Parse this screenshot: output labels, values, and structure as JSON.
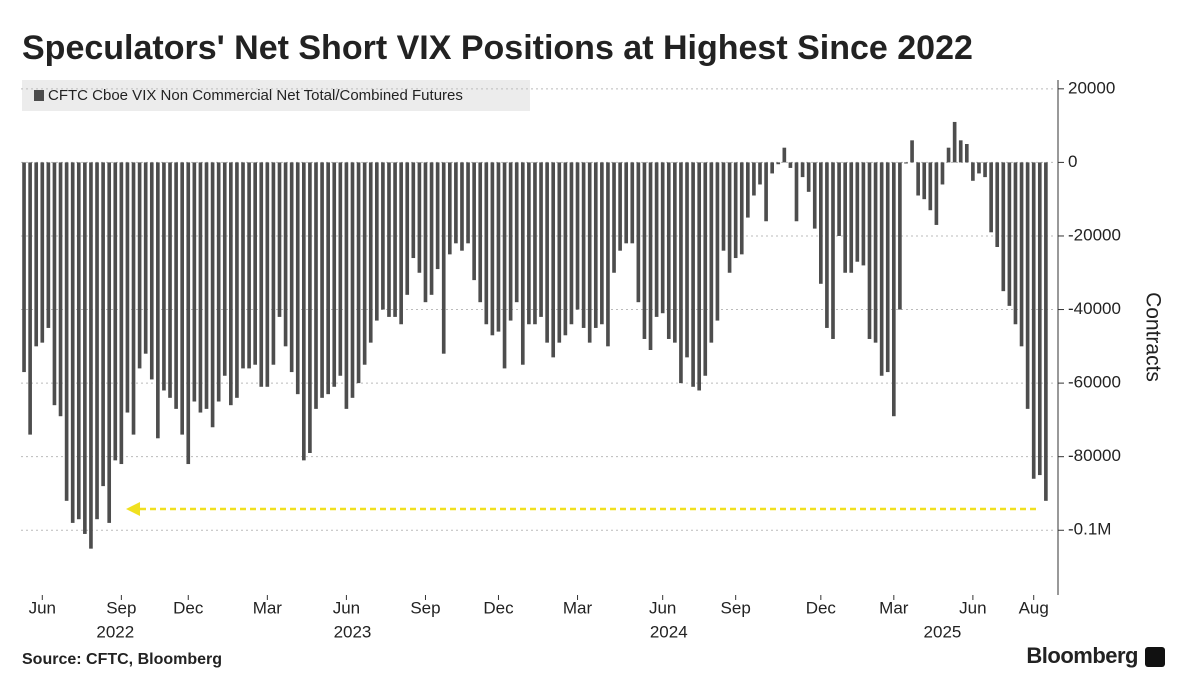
{
  "chart_data": {
    "type": "bar",
    "title": "Speculators' Net Short VIX Positions at Highest Since 2022",
    "y_label": "Contracts",
    "source": "Source: CFTC, Bloomberg",
    "brand": "Bloomberg",
    "series": [
      {
        "name": "CFTC Cboe VIX Non Commercial Net Total/Combined Futures",
        "color": "#4d4d4d",
        "values": [
          -57000,
          -74000,
          -50000,
          -49000,
          -45000,
          -66000,
          -69000,
          -92000,
          -98000,
          -97000,
          -101000,
          -105000,
          -97000,
          -88000,
          -98000,
          -81000,
          -82000,
          -68000,
          -74000,
          -56000,
          -52000,
          -59000,
          -75000,
          -62000,
          -64000,
          -67000,
          -74000,
          -82000,
          -65000,
          -68000,
          -67000,
          -72000,
          -65000,
          -58000,
          -66000,
          -64000,
          -56000,
          -56000,
          -55000,
          -61000,
          -61000,
          -55000,
          -42000,
          -50000,
          -57000,
          -63000,
          -81000,
          -79000,
          -67000,
          -64000,
          -63000,
          -61000,
          -58000,
          -67000,
          -64000,
          -60000,
          -55000,
          -49000,
          -43000,
          -40000,
          -42000,
          -42000,
          -44000,
          -36000,
          -26000,
          -30000,
          -38000,
          -36000,
          -29000,
          -52000,
          -25000,
          -22000,
          -24000,
          -22000,
          -32000,
          -38000,
          -44000,
          -47000,
          -46000,
          -56000,
          -43000,
          -38000,
          -55000,
          -44000,
          -44000,
          -42000,
          -49000,
          -53000,
          -49000,
          -47000,
          -44000,
          -40000,
          -45000,
          -49000,
          -45000,
          -44000,
          -50000,
          -30000,
          -24000,
          -22000,
          -22000,
          -38000,
          -48000,
          -51000,
          -42000,
          -41000,
          -48000,
          -49000,
          -60000,
          -53000,
          -61000,
          -62000,
          -58000,
          -49000,
          -43000,
          -24000,
          -30000,
          -26000,
          -25000,
          -15000,
          -9000,
          -6000,
          -16000,
          -3000,
          -500,
          4000,
          -1500,
          -16000,
          -4000,
          -8000,
          -18000,
          -33000,
          -45000,
          -48000,
          -20000,
          -30000,
          -30000,
          -27000,
          -28000,
          -48000,
          -49000,
          -58000,
          -57000,
          -69000,
          -40000,
          -300,
          6000,
          -9000,
          -10000,
          -13000,
          -17000,
          -6000,
          4000,
          11000,
          6000,
          5000,
          -5000,
          -3000,
          -4000,
          -19000,
          -23000,
          -35000,
          -39000,
          -44000,
          -50000,
          -67000,
          -86000,
          -85000,
          -92000
        ]
      }
    ],
    "xlim": [
      -0.5,
      169.5
    ],
    "xticks": [
      {
        "value": 3,
        "label": "Jun"
      },
      {
        "value": 16,
        "label": "Sep"
      },
      {
        "value": 27,
        "label": "Dec"
      },
      {
        "value": 40,
        "label": "Mar"
      },
      {
        "value": 53,
        "label": "Jun"
      },
      {
        "value": 66,
        "label": "Sep"
      },
      {
        "value": 78,
        "label": "Dec"
      },
      {
        "value": 91,
        "label": "Mar"
      },
      {
        "value": 105,
        "label": "Jun"
      },
      {
        "value": 117,
        "label": "Sep"
      },
      {
        "value": 131,
        "label": "Dec"
      },
      {
        "value": 143,
        "label": "Mar"
      },
      {
        "value": 156,
        "label": "Jun"
      },
      {
        "value": 166,
        "label": "Aug"
      }
    ],
    "year_labels": [
      {
        "value": 15,
        "label": "2022"
      },
      {
        "value": 54,
        "label": "2023"
      },
      {
        "value": 106,
        "label": "2024"
      },
      {
        "value": 151,
        "label": "2025"
      }
    ],
    "ylim": [
      -117600,
      22400
    ],
    "yticks": [
      20000,
      0,
      -20000,
      -40000,
      -60000,
      -80000,
      {
        "value": -100000,
        "label": "-0.1M"
      }
    ],
    "grid": true
  }
}
